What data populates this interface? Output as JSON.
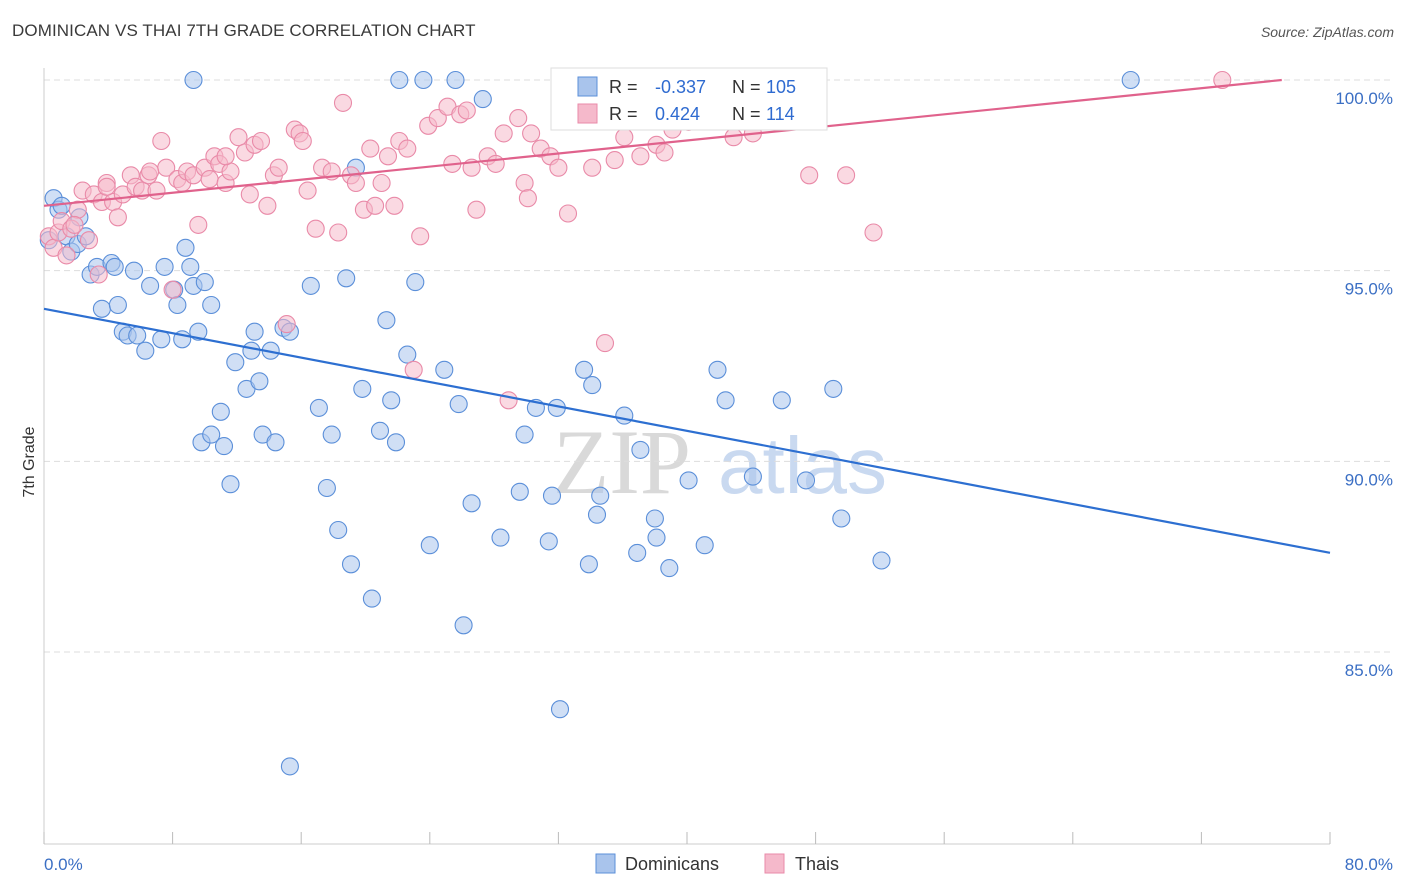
{
  "title": "DOMINICAN VS THAI 7TH GRADE CORRELATION CHART",
  "source": "Source: ZipAtlas.com",
  "watermark": {
    "zip": "ZIP",
    "atlas": "atlas"
  },
  "colors": {
    "dominicans_fill": "#a9c4ec",
    "dominicans_stroke": "#5b8fd9",
    "dominicans_line": "#2d6fd1",
    "thais_fill": "#f5b9cb",
    "thais_stroke": "#e98aa8",
    "thais_line": "#e0628c",
    "grid": "#dddddd",
    "tick_label": "#3b6fc4"
  },
  "legend": {
    "r_label": "R =",
    "n_label": "N =",
    "rows": [
      {
        "series": "Dominicans",
        "r": "-0.337",
        "n": "105"
      },
      {
        "series": "Thais",
        "r": "0.424",
        "n": "114"
      }
    ]
  },
  "chart_data": {
    "type": "scatter",
    "title": "DOMINICAN VS THAI 7TH GRADE CORRELATION CHART",
    "xlabel": "",
    "ylabel": "7th Grade",
    "xlim": [
      0,
      80
    ],
    "ylim": [
      80.0,
      100.8
    ],
    "x_tick_labels": [
      {
        "value": 0,
        "label": "0.0%"
      },
      {
        "value": 80,
        "label": "80.0%"
      }
    ],
    "y_tick_labels": [
      {
        "value": 100,
        "label": "100.0%"
      },
      {
        "value": 95,
        "label": "95.0%"
      },
      {
        "value": 90,
        "label": "90.0%"
      },
      {
        "value": 85,
        "label": "85.0%"
      }
    ],
    "grid": true,
    "legend_position": "top-center",
    "series": [
      {
        "name": "Dominicans",
        "trend": {
          "x": [
            0,
            80
          ],
          "y": [
            94.0,
            87.6
          ]
        },
        "points": [
          [
            0.3,
            95.8
          ],
          [
            0.6,
            96.9
          ],
          [
            0.9,
            96.6
          ],
          [
            1.1,
            96.7
          ],
          [
            1.4,
            95.9
          ],
          [
            1.7,
            95.5
          ],
          [
            2.1,
            95.7
          ],
          [
            2.6,
            95.9
          ],
          [
            2.9,
            94.9
          ],
          [
            3.3,
            95.1
          ],
          [
            3.6,
            94.0
          ],
          [
            4.2,
            95.2
          ],
          [
            4.4,
            95.1
          ],
          [
            4.6,
            94.1
          ],
          [
            4.9,
            93.4
          ],
          [
            5.2,
            93.3
          ],
          [
            5.8,
            93.3
          ],
          [
            6.3,
            92.9
          ],
          [
            5.6,
            95.0
          ],
          [
            6.6,
            94.6
          ],
          [
            7.3,
            93.2
          ],
          [
            7.5,
            95.1
          ],
          [
            8.1,
            94.5
          ],
          [
            8.3,
            94.1
          ],
          [
            8.6,
            93.2
          ],
          [
            8.8,
            95.6
          ],
          [
            9.1,
            95.1
          ],
          [
            9.3,
            94.6
          ],
          [
            9.6,
            93.4
          ],
          [
            10.0,
            94.7
          ],
          [
            10.4,
            94.1
          ],
          [
            9.8,
            90.5
          ],
          [
            10.4,
            90.7
          ],
          [
            11.0,
            91.3
          ],
          [
            11.2,
            90.4
          ],
          [
            11.6,
            89.4
          ],
          [
            11.9,
            92.6
          ],
          [
            12.6,
            91.9
          ],
          [
            12.9,
            92.9
          ],
          [
            13.1,
            93.4
          ],
          [
            13.4,
            92.1
          ],
          [
            13.6,
            90.7
          ],
          [
            14.1,
            92.9
          ],
          [
            14.4,
            90.5
          ],
          [
            14.9,
            93.5
          ],
          [
            15.3,
            93.4
          ],
          [
            16.6,
            94.6
          ],
          [
            17.1,
            91.4
          ],
          [
            17.6,
            89.3
          ],
          [
            17.9,
            90.7
          ],
          [
            18.3,
            88.2
          ],
          [
            18.8,
            94.8
          ],
          [
            19.1,
            87.3
          ],
          [
            19.4,
            97.7
          ],
          [
            19.8,
            91.9
          ],
          [
            20.4,
            86.4
          ],
          [
            20.9,
            90.8
          ],
          [
            21.3,
            93.7
          ],
          [
            21.6,
            91.6
          ],
          [
            21.9,
            90.5
          ],
          [
            22.1,
            100.0
          ],
          [
            22.6,
            92.8
          ],
          [
            23.1,
            94.7
          ],
          [
            23.6,
            100.0
          ],
          [
            24.0,
            87.8
          ],
          [
            24.9,
            92.4
          ],
          [
            25.6,
            100.0
          ],
          [
            25.8,
            91.5
          ],
          [
            26.1,
            85.7
          ],
          [
            26.6,
            88.9
          ],
          [
            27.3,
            99.5
          ],
          [
            28.4,
            88.0
          ],
          [
            29.6,
            89.2
          ],
          [
            29.9,
            90.7
          ],
          [
            30.6,
            91.4
          ],
          [
            31.4,
            87.9
          ],
          [
            31.6,
            89.1
          ],
          [
            31.9,
            91.4
          ],
          [
            32.1,
            83.5
          ],
          [
            32.9,
            100.0
          ],
          [
            33.9,
            87.3
          ],
          [
            33.6,
            92.4
          ],
          [
            34.1,
            92.0
          ],
          [
            34.4,
            88.6
          ],
          [
            34.6,
            89.1
          ],
          [
            36.1,
            91.2
          ],
          [
            36.9,
            87.6
          ],
          [
            37.1,
            90.3
          ],
          [
            38.0,
            88.5
          ],
          [
            38.1,
            88.0
          ],
          [
            38.9,
            87.2
          ],
          [
            40.1,
            89.5
          ],
          [
            41.1,
            87.8
          ],
          [
            41.9,
            92.4
          ],
          [
            42.4,
            91.6
          ],
          [
            44.1,
            89.6
          ],
          [
            45.9,
            91.6
          ],
          [
            47.4,
            89.5
          ],
          [
            49.1,
            91.9
          ],
          [
            49.6,
            88.5
          ],
          [
            52.1,
            87.4
          ],
          [
            67.6,
            100.0
          ],
          [
            15.3,
            82.0
          ],
          [
            9.3,
            100.0
          ],
          [
            2.2,
            96.4
          ]
        ]
      },
      {
        "name": "Thais",
        "trend": {
          "x": [
            0,
            77
          ],
          "y": [
            96.7,
            100.0
          ]
        },
        "points": [
          [
            0.3,
            95.9
          ],
          [
            0.6,
            95.6
          ],
          [
            0.9,
            96.0
          ],
          [
            1.1,
            96.3
          ],
          [
            1.4,
            95.4
          ],
          [
            1.7,
            96.1
          ],
          [
            2.1,
            96.6
          ],
          [
            2.4,
            97.1
          ],
          [
            2.8,
            95.8
          ],
          [
            3.1,
            97.0
          ],
          [
            3.4,
            94.9
          ],
          [
            3.6,
            96.8
          ],
          [
            3.9,
            97.3
          ],
          [
            4.3,
            96.8
          ],
          [
            4.6,
            96.4
          ],
          [
            4.9,
            97.0
          ],
          [
            5.4,
            97.5
          ],
          [
            5.7,
            97.2
          ],
          [
            6.1,
            97.1
          ],
          [
            6.5,
            97.5
          ],
          [
            7.0,
            97.1
          ],
          [
            7.3,
            98.4
          ],
          [
            7.6,
            97.7
          ],
          [
            8.0,
            94.5
          ],
          [
            8.3,
            97.4
          ],
          [
            8.6,
            97.3
          ],
          [
            8.9,
            97.6
          ],
          [
            9.3,
            97.5
          ],
          [
            9.6,
            96.2
          ],
          [
            10.0,
            97.7
          ],
          [
            10.3,
            97.4
          ],
          [
            10.6,
            98.0
          ],
          [
            10.9,
            97.8
          ],
          [
            11.3,
            97.3
          ],
          [
            11.6,
            97.6
          ],
          [
            12.1,
            98.5
          ],
          [
            12.5,
            98.1
          ],
          [
            12.8,
            97.0
          ],
          [
            13.1,
            98.3
          ],
          [
            13.5,
            98.4
          ],
          [
            13.9,
            96.7
          ],
          [
            14.3,
            97.5
          ],
          [
            14.6,
            97.7
          ],
          [
            15.1,
            93.6
          ],
          [
            15.6,
            98.7
          ],
          [
            15.9,
            98.6
          ],
          [
            16.4,
            97.1
          ],
          [
            16.9,
            96.1
          ],
          [
            17.3,
            97.7
          ],
          [
            17.9,
            97.6
          ],
          [
            18.3,
            96.0
          ],
          [
            18.6,
            99.4
          ],
          [
            19.1,
            97.5
          ],
          [
            19.4,
            97.3
          ],
          [
            19.9,
            96.6
          ],
          [
            20.3,
            98.2
          ],
          [
            20.6,
            96.7
          ],
          [
            21.0,
            97.3
          ],
          [
            21.4,
            98.0
          ],
          [
            21.8,
            96.7
          ],
          [
            22.1,
            98.4
          ],
          [
            22.6,
            98.2
          ],
          [
            23.0,
            92.4
          ],
          [
            23.4,
            95.9
          ],
          [
            23.9,
            98.8
          ],
          [
            24.5,
            99.0
          ],
          [
            25.1,
            99.3
          ],
          [
            25.4,
            97.8
          ],
          [
            25.9,
            99.1
          ],
          [
            26.3,
            99.2
          ],
          [
            26.6,
            97.7
          ],
          [
            26.9,
            96.6
          ],
          [
            27.6,
            98.0
          ],
          [
            28.1,
            97.8
          ],
          [
            28.6,
            98.6
          ],
          [
            28.9,
            91.6
          ],
          [
            29.5,
            99.0
          ],
          [
            29.9,
            97.3
          ],
          [
            30.3,
            98.6
          ],
          [
            30.9,
            98.2
          ],
          [
            31.5,
            98.0
          ],
          [
            32.0,
            97.7
          ],
          [
            32.6,
            96.5
          ],
          [
            33.0,
            99.4
          ],
          [
            33.6,
            99.8
          ],
          [
            34.1,
            97.7
          ],
          [
            34.6,
            100.0
          ],
          [
            34.9,
            93.1
          ],
          [
            35.5,
            97.9
          ],
          [
            36.1,
            98.5
          ],
          [
            36.6,
            99.5
          ],
          [
            37.1,
            98.0
          ],
          [
            37.6,
            99.7
          ],
          [
            38.1,
            98.3
          ],
          [
            38.6,
            98.1
          ],
          [
            39.1,
            98.7
          ],
          [
            39.5,
            99.8
          ],
          [
            40.1,
            98.9
          ],
          [
            41.1,
            99.0
          ],
          [
            42.9,
            98.5
          ],
          [
            44.1,
            98.6
          ],
          [
            45.1,
            99.1
          ],
          [
            45.6,
            99.7
          ],
          [
            46.0,
            100.0
          ],
          [
            47.6,
            97.5
          ],
          [
            49.9,
            97.5
          ],
          [
            51.6,
            96.0
          ],
          [
            30.1,
            96.9
          ],
          [
            11.3,
            98.0
          ],
          [
            16.1,
            98.4
          ],
          [
            73.3,
            100.0
          ],
          [
            1.9,
            96.2
          ],
          [
            3.9,
            97.2
          ],
          [
            6.6,
            97.6
          ]
        ]
      }
    ]
  },
  "bottom_legend": [
    {
      "label": "Dominicans",
      "series": "Dominicans"
    },
    {
      "label": "Thais",
      "series": "Thais"
    }
  ]
}
